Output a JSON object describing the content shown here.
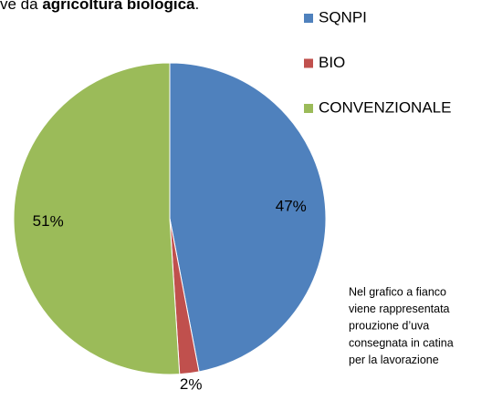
{
  "chart_data": {
    "type": "pie",
    "title_parts": [
      "ve da ",
      "agricoltura biologica",
      "."
    ],
    "categories": [
      "SQNPI",
      "BIO",
      "CONVENZIONALE"
    ],
    "values": [
      47,
      2,
      51
    ],
    "colors": [
      "#4f81bd",
      "#c0504d",
      "#9bbb59"
    ],
    "legend": "top-right",
    "annotation": [
      "Nel grafico a fianco",
      "viene rappresentata",
      "prouzione d’uva",
      "consegnata in catina",
      "per la lavorazione"
    ]
  }
}
